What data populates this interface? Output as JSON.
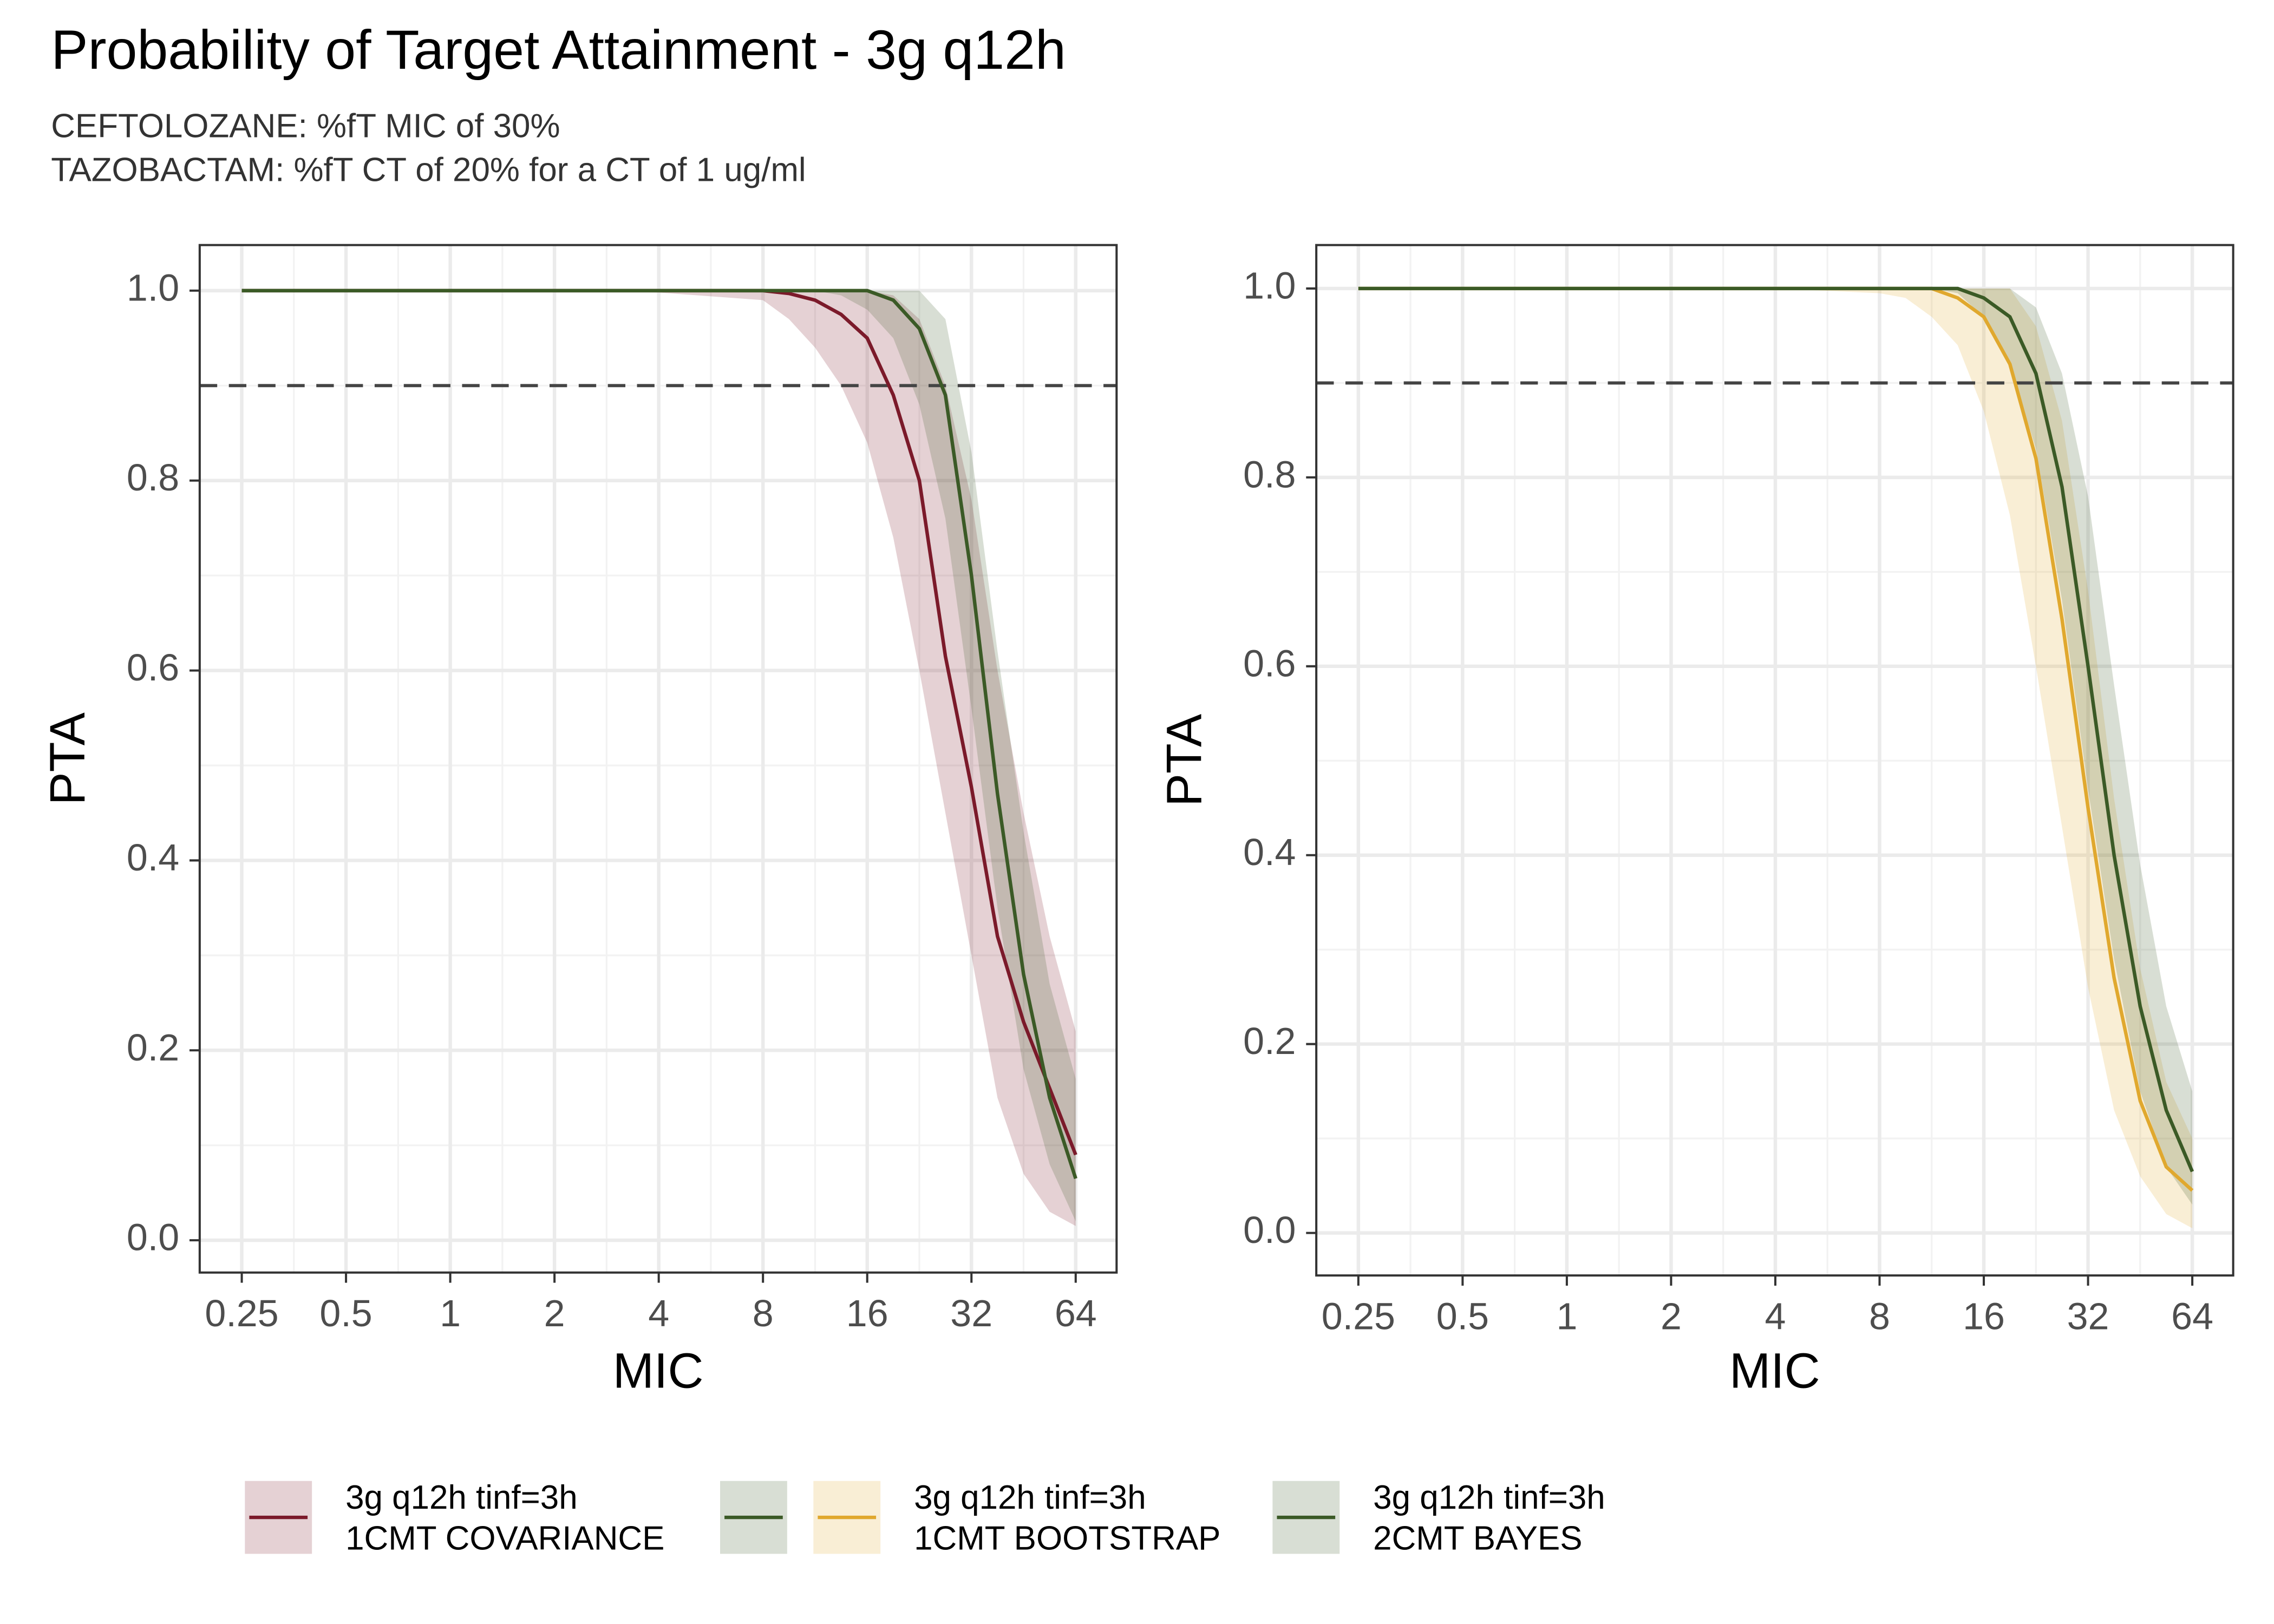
{
  "title": "Probability of Target Attainment - 3g q12h",
  "subtitle": [
    "CEFTOLOZANE: %fT MIC of 30%",
    "TAZOBACTAM: %fT CT of 20% for a CT of 1 ug/ml"
  ],
  "chart_data": [
    {
      "type": "line",
      "xlabel": "MIC",
      "ylabel": "PTA",
      "xscale": "log2",
      "grid": true,
      "hline": 0.9,
      "x": [
        0.25,
        0.5,
        1,
        2,
        4,
        8,
        9.51,
        11.31,
        13.45,
        16,
        19.03,
        22.63,
        26.91,
        32,
        38.05,
        45.25,
        53.82,
        64
      ],
      "xlim": [
        0.189,
        84
      ],
      "xticks": [
        0.25,
        0.5,
        1,
        2,
        4,
        8,
        16,
        32,
        64
      ],
      "ylim": [
        -0.034,
        1.048
      ],
      "yticks": [
        {
          "value": 0,
          "label": "0.0"
        },
        0.2,
        0.4,
        0.6,
        0.8,
        {
          "value": 1,
          "label": "1.0"
        }
      ],
      "series": [
        {
          "name": [
            "3g q12h tinf=3h",
            "1CMT COVARIANCE"
          ],
          "color": "#7b1a2a",
          "values": [
            1,
            1,
            1,
            1,
            1,
            1,
            0.997,
            0.99,
            0.975,
            0.95,
            0.89,
            0.8,
            0.615,
            0.477,
            0.32,
            0.23,
            0.16,
            0.09
          ],
          "lower": [
            1,
            1,
            1,
            1,
            0.998,
            0.99,
            0.97,
            0.94,
            0.9,
            0.84,
            0.74,
            0.6,
            0.45,
            0.3,
            0.15,
            0.07,
            0.03,
            0.015
          ],
          "upper": [
            1,
            1,
            1,
            1,
            1,
            1,
            1,
            1,
            1,
            1,
            0.995,
            0.97,
            0.9,
            0.78,
            0.6,
            0.45,
            0.32,
            0.22
          ]
        },
        {
          "name": null,
          "color": "#3b5a26",
          "values": [
            1,
            1,
            1,
            1,
            1,
            1,
            1,
            1,
            1,
            1,
            0.99,
            0.96,
            0.89,
            0.7,
            0.47,
            0.28,
            0.15,
            0.065
          ],
          "lower": [
            1,
            1,
            1,
            1,
            1,
            1,
            1,
            1,
            0.995,
            0.98,
            0.95,
            0.88,
            0.76,
            0.56,
            0.35,
            0.18,
            0.08,
            0.02
          ],
          "upper": [
            1,
            1,
            1,
            1,
            1,
            1,
            1,
            1,
            1,
            1,
            1,
            1,
            0.97,
            0.83,
            0.62,
            0.43,
            0.27,
            0.17
          ]
        }
      ]
    },
    {
      "type": "line",
      "xlabel": "MIC",
      "ylabel": "PTA",
      "xscale": "log2",
      "grid": true,
      "hline": 0.9,
      "x": [
        0.25,
        0.5,
        1,
        2,
        4,
        8,
        9.51,
        11.31,
        13.45,
        16,
        19.03,
        22.63,
        26.91,
        32,
        38.05,
        45.25,
        53.82,
        64
      ],
      "xlim": [
        0.189,
        84
      ],
      "xticks": [
        0.25,
        0.5,
        1,
        2,
        4,
        8,
        16,
        32,
        64
      ],
      "ylim": [
        -0.045,
        1.046
      ],
      "yticks": [
        {
          "value": 0,
          "label": "0.0"
        },
        0.2,
        0.4,
        0.6,
        0.8,
        {
          "value": 1,
          "label": "1.0"
        }
      ],
      "series": [
        {
          "name": [
            "3g q12h tinf=3h",
            "1CMT BOOTSTRAP"
          ],
          "color": "#e0a82e",
          "values": [
            1,
            1,
            1,
            1,
            1,
            1,
            1,
            1,
            0.99,
            0.97,
            0.92,
            0.82,
            0.65,
            0.45,
            0.27,
            0.14,
            0.07,
            0.045
          ],
          "lower": [
            1,
            1,
            1,
            1,
            1,
            0.995,
            0.99,
            0.97,
            0.94,
            0.87,
            0.76,
            0.6,
            0.43,
            0.26,
            0.13,
            0.06,
            0.02,
            0.005
          ],
          "upper": [
            1,
            1,
            1,
            1,
            1,
            1,
            1,
            1,
            1,
            1,
            1,
            0.96,
            0.86,
            0.68,
            0.46,
            0.28,
            0.16,
            0.1
          ]
        },
        {
          "name": [
            "3g q12h tinf=3h",
            "2CMT BAYES"
          ],
          "color": "#3b5a26",
          "values": [
            1,
            1,
            1,
            1,
            1,
            1,
            1,
            1,
            1,
            0.99,
            0.97,
            0.91,
            0.79,
            0.6,
            0.4,
            0.24,
            0.13,
            0.065
          ],
          "lower": [
            1,
            1,
            1,
            1,
            1,
            1,
            1,
            1,
            0.995,
            0.97,
            0.92,
            0.83,
            0.67,
            0.47,
            0.29,
            0.15,
            0.07,
            0.03
          ],
          "upper": [
            1,
            1,
            1,
            1,
            1,
            1,
            1,
            1,
            1,
            1,
            1,
            0.98,
            0.91,
            0.78,
            0.58,
            0.39,
            0.24,
            0.15
          ]
        }
      ]
    }
  ]
}
